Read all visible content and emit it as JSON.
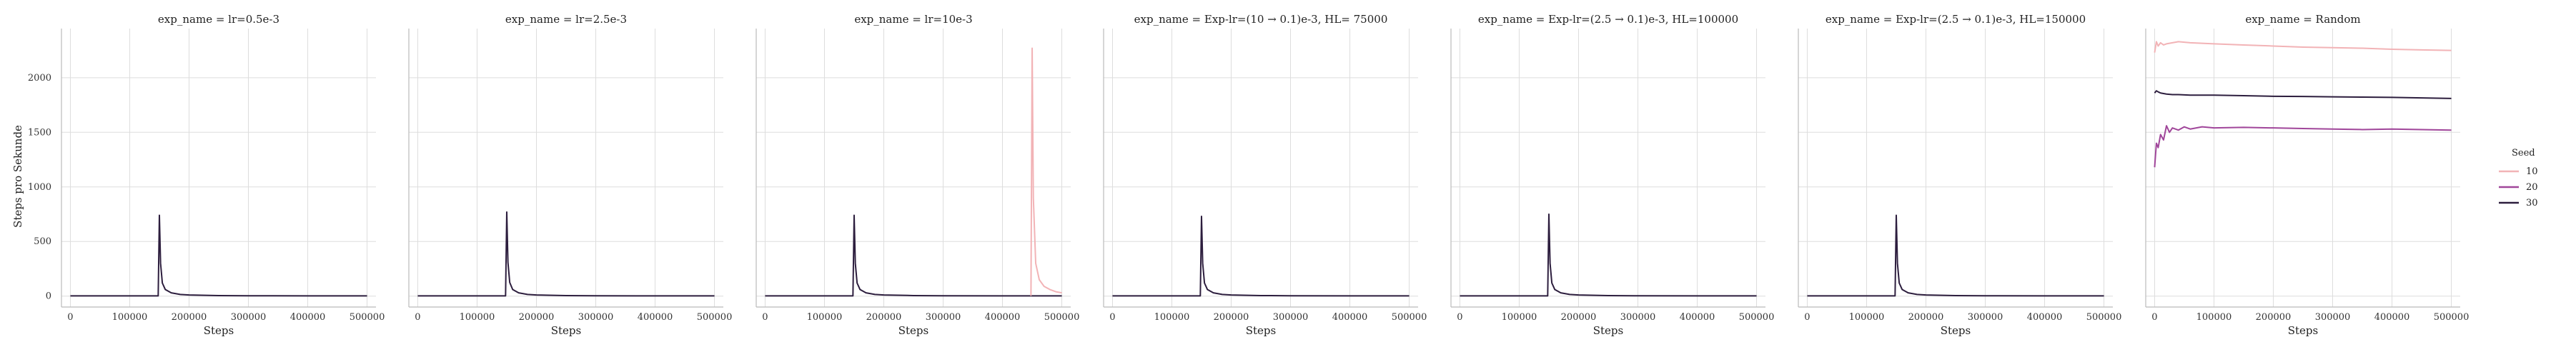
{
  "chart_data": {
    "type": "line",
    "ylabel": "Steps pro Sekunde",
    "xlabel": "Steps",
    "xlim": [
      -15000,
      515000
    ],
    "ylim": [
      -100,
      2450
    ],
    "x_ticks": [
      0,
      100000,
      200000,
      300000,
      400000,
      500000
    ],
    "x_tick_labels": [
      "0",
      "100000",
      "200000",
      "300000",
      "400000",
      "500000"
    ],
    "y_ticks": [
      0,
      500,
      1000,
      1500,
      2000
    ],
    "y_tick_labels": [
      "0",
      "500",
      "1000",
      "1500",
      "2000"
    ],
    "grid": true,
    "legend": {
      "title": "Seed",
      "position": "right",
      "entries": [
        {
          "label": "10",
          "color": "#f2b3b6"
        },
        {
          "label": "20",
          "color": "#a0469a"
        },
        {
          "label": "30",
          "color": "#2d1e3e"
        }
      ]
    },
    "panels": [
      {
        "title": "exp_name = lr=0.5e-3",
        "series": [
          {
            "seed": "30",
            "x": [
              0,
              100000,
              148000,
              150000,
              152000,
              155000,
              160000,
              170000,
              185000,
              200000,
              250000,
              300000,
              400000,
              500000
            ],
            "y": [
              2,
              2,
              2,
              740,
              300,
              120,
              60,
              30,
              15,
              10,
              5,
              3,
              2,
              2
            ]
          }
        ]
      },
      {
        "title": "exp_name = lr=2.5e-3",
        "series": [
          {
            "seed": "30",
            "x": [
              0,
              100000,
              148000,
              150000,
              152000,
              155000,
              160000,
              170000,
              185000,
              200000,
              250000,
              300000,
              400000,
              500000
            ],
            "y": [
              2,
              2,
              2,
              770,
              310,
              125,
              60,
              30,
              15,
              10,
              5,
              3,
              2,
              2
            ]
          }
        ]
      },
      {
        "title": "exp_name = lr=10e-3",
        "series": [
          {
            "seed": "30",
            "x": [
              0,
              100000,
              148000,
              150000,
              152000,
              155000,
              160000,
              170000,
              185000,
              200000,
              250000,
              300000,
              400000,
              500000
            ],
            "y": [
              2,
              2,
              2,
              740,
              300,
              120,
              60,
              30,
              15,
              10,
              5,
              3,
              2,
              2
            ]
          },
          {
            "seed": "10",
            "x": [
              448000,
              450000,
              452000,
              456000,
              462000,
              470000,
              480000,
              490000,
              500000
            ],
            "y": [
              2,
              2270,
              900,
              300,
              150,
              90,
              60,
              40,
              30
            ]
          }
        ]
      },
      {
        "title": "exp_name = Exp-lr=(10 → 0.1)e-3, HL= 75000",
        "series": [
          {
            "seed": "30",
            "x": [
              0,
              100000,
              148000,
              150000,
              152000,
              155000,
              160000,
              170000,
              185000,
              200000,
              250000,
              300000,
              400000,
              500000
            ],
            "y": [
              2,
              2,
              2,
              730,
              300,
              120,
              60,
              30,
              15,
              10,
              5,
              3,
              2,
              2
            ]
          }
        ]
      },
      {
        "title": "exp_name = Exp-lr=(2.5 → 0.1)e-3, HL=100000",
        "series": [
          {
            "seed": "30",
            "x": [
              0,
              100000,
              148000,
              150000,
              152000,
              155000,
              160000,
              170000,
              185000,
              200000,
              250000,
              300000,
              400000,
              500000
            ],
            "y": [
              2,
              2,
              2,
              750,
              300,
              120,
              60,
              30,
              15,
              10,
              5,
              3,
              2,
              2
            ]
          }
        ]
      },
      {
        "title": "exp_name = Exp-lr=(2.5 → 0.1)e-3, HL=150000",
        "series": [
          {
            "seed": "30",
            "x": [
              0,
              100000,
              148000,
              150000,
              152000,
              155000,
              160000,
              170000,
              185000,
              200000,
              250000,
              300000,
              400000,
              500000
            ],
            "y": [
              2,
              2,
              2,
              740,
              300,
              120,
              60,
              30,
              15,
              10,
              5,
              3,
              2,
              2
            ]
          }
        ]
      },
      {
        "title": "exp_name = Random",
        "series": [
          {
            "seed": "10",
            "x": [
              0,
              3000,
              6000,
              10000,
              15000,
              20000,
              30000,
              40000,
              60000,
              100000,
              150000,
              200000,
              250000,
              300000,
              350000,
              400000,
              450000,
              500000
            ],
            "y": [
              2230,
              2330,
              2290,
              2320,
              2300,
              2310,
              2320,
              2330,
              2320,
              2310,
              2300,
              2290,
              2280,
              2275,
              2270,
              2260,
              2255,
              2250
            ]
          },
          {
            "seed": "20",
            "x": [
              0,
              3000,
              6000,
              10000,
              15000,
              20000,
              25000,
              30000,
              40000,
              50000,
              60000,
              80000,
              100000,
              150000,
              200000,
              250000,
              300000,
              350000,
              400000,
              450000,
              500000
            ],
            "y": [
              1180,
              1400,
              1360,
              1480,
              1430,
              1560,
              1500,
              1540,
              1520,
              1550,
              1530,
              1550,
              1540,
              1545,
              1540,
              1535,
              1530,
              1525,
              1530,
              1525,
              1520
            ]
          },
          {
            "seed": "30",
            "x": [
              0,
              3000,
              6000,
              10000,
              15000,
              20000,
              30000,
              40000,
              60000,
              100000,
              150000,
              200000,
              250000,
              300000,
              350000,
              400000,
              450000,
              500000
            ],
            "y": [
              1860,
              1880,
              1870,
              1860,
              1855,
              1850,
              1845,
              1845,
              1840,
              1840,
              1835,
              1830,
              1828,
              1825,
              1822,
              1820,
              1815,
              1810
            ]
          }
        ]
      }
    ]
  }
}
